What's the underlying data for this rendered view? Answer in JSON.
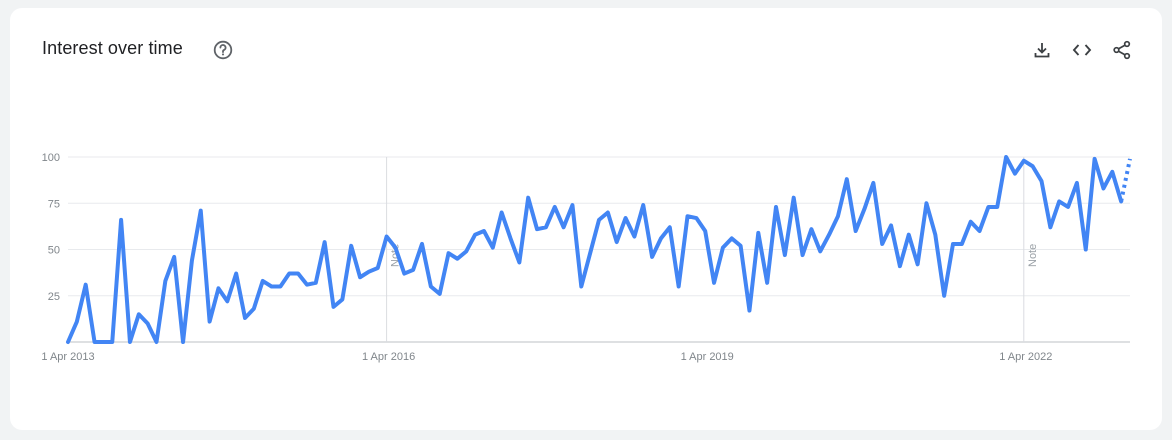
{
  "card": {
    "title": "Interest over time",
    "help_icon": "help-circle-icon",
    "actions": [
      {
        "name": "download-button",
        "icon": "download-icon"
      },
      {
        "name": "embed-button",
        "icon": "code-icon"
      },
      {
        "name": "share-button",
        "icon": "share-icon"
      }
    ]
  },
  "colors": {
    "series": "#4285f4",
    "grid": "#e8eaed",
    "axis": "#bdc1c6"
  },
  "chart_data": {
    "type": "line",
    "title": "Interest over time",
    "xlabel": "",
    "ylabel": "",
    "ylim": [
      0,
      100
    ],
    "yticks": [
      25,
      50,
      75,
      100
    ],
    "x_start": "2013-04",
    "x_interval": "month",
    "xticks": [
      {
        "label": "1 Apr 2013",
        "index": 0
      },
      {
        "label": "1 Apr 2016",
        "index": 36
      },
      {
        "label": "1 Apr 2019",
        "index": 72
      },
      {
        "label": "1 Apr 2022",
        "index": 108
      }
    ],
    "notes": [
      {
        "label": "Note",
        "index": 36
      },
      {
        "label": "Note",
        "index": 108
      }
    ],
    "partial_last_point": true,
    "grid": true,
    "values": [
      0,
      11,
      31,
      0,
      0,
      0,
      66,
      0,
      15,
      10,
      0,
      33,
      46,
      0,
      44,
      71,
      11,
      29,
      22,
      37,
      13,
      18,
      33,
      30,
      30,
      37,
      37,
      31,
      32,
      54,
      19,
      23,
      52,
      35,
      38,
      40,
      57,
      51,
      37,
      39,
      53,
      30,
      26,
      48,
      45,
      49,
      58,
      60,
      51,
      70,
      56,
      43,
      78,
      61,
      62,
      73,
      62,
      74,
      30,
      48,
      66,
      70,
      54,
      67,
      57,
      74,
      46,
      56,
      62,
      30,
      68,
      67,
      60,
      32,
      51,
      56,
      52,
      17,
      59,
      32,
      73,
      47,
      78,
      47,
      61,
      49,
      58,
      68,
      88,
      60,
      72,
      86,
      53,
      63,
      41,
      58,
      42,
      75,
      58,
      25,
      53,
      53,
      65,
      60,
      73,
      73,
      100,
      91,
      98,
      95,
      87,
      62,
      76,
      73,
      86,
      50,
      99,
      83,
      92,
      76,
      99
    ]
  }
}
